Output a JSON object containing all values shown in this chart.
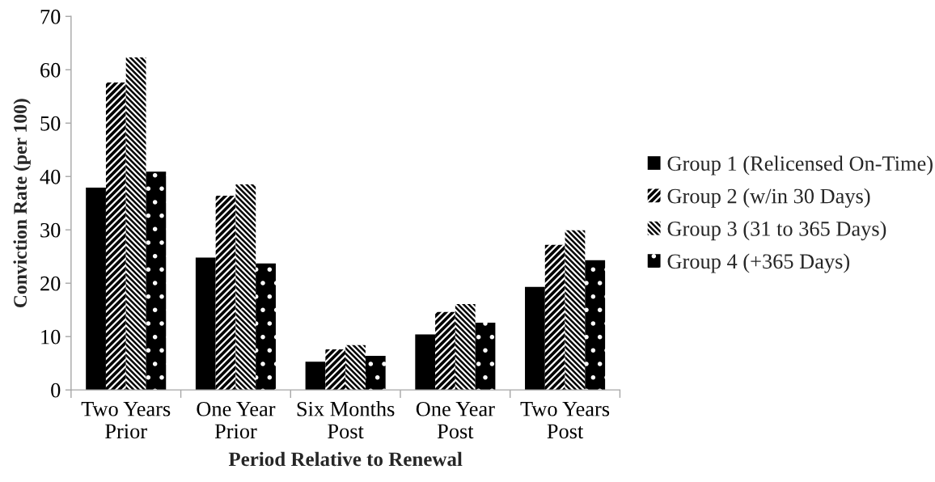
{
  "chart_data": {
    "type": "bar",
    "categories": [
      "Two Years\nPrior",
      "One Year\nPrior",
      "Six Months\nPost",
      "One Year\nPost",
      "Two Years\nPost"
    ],
    "series": [
      {
        "name": "Group 1 (Relicensed On-Time)",
        "color": "#000000",
        "values": [
          37.9,
          24.8,
          5.3,
          10.4,
          19.3
        ]
      },
      {
        "name": "Group 2 (w/in 30 Days)",
        "color": "#000000",
        "values": [
          57.6,
          36.4,
          7.6,
          14.6,
          27.2
        ]
      },
      {
        "name": "Group 3 (31 to 365 Days)",
        "color": "#000000",
        "values": [
          62.3,
          38.5,
          8.4,
          16.1,
          29.9
        ]
      },
      {
        "name": "Group 4 (+365 Days)",
        "color": "#000000",
        "values": [
          40.9,
          23.7,
          6.4,
          12.6,
          24.3
        ]
      }
    ],
    "xlabel": "Period Relative to Renewal",
    "ylabel": "Conviction Rate (per 100)",
    "ylim": [
      0,
      70
    ],
    "yticks": [
      0,
      10,
      20,
      30,
      40,
      50,
      60,
      70
    ],
    "grid": false,
    "legend": "right"
  }
}
